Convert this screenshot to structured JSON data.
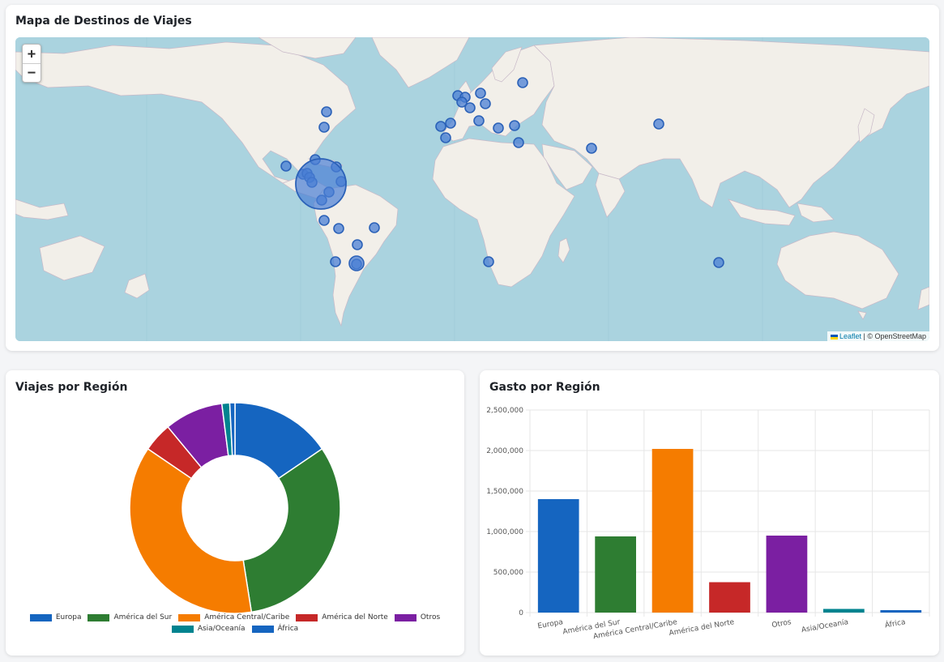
{
  "map_card": {
    "title": "Mapa de Destinos de Viajes",
    "zoom_in": "+",
    "zoom_out": "−",
    "attribution_link": "Leaflet",
    "attribution_text": " | © OpenStreetMap",
    "colors": {
      "ocean": "#aad3df",
      "land": "#f2efe9",
      "marker": "#4a7fd4"
    }
  },
  "pie_card": {
    "title": "Viajes por Región",
    "chart_data": {
      "type": "pie",
      "title": "Viajes por Región",
      "donut": true,
      "categories": [
        "Europa",
        "América del Sur",
        "América Central/Caribe",
        "América del Norte",
        "Otros",
        "Asia/Oceanía",
        "África"
      ],
      "values": [
        15.5,
        32,
        37,
        4.5,
        9,
        1.2,
        0.8
      ],
      "colors": [
        "#1565c0",
        "#2e7d32",
        "#f57c00",
        "#c62828",
        "#7b1fa2",
        "#00838f",
        "#1565c0"
      ],
      "legend_position": "bottom"
    }
  },
  "bar_card": {
    "title": "Gasto por Región",
    "chart_data": {
      "type": "bar",
      "title": "Gasto por Región",
      "categories": [
        "Europa",
        "América del Sur",
        "América Central/Caribe",
        "América del Norte",
        "Otros",
        "Asia/Oceanía",
        "África"
      ],
      "values": [
        1400000,
        940000,
        2020000,
        375000,
        950000,
        45000,
        30000
      ],
      "colors": [
        "#1565c0",
        "#2e7d32",
        "#f57c00",
        "#c62828",
        "#7b1fa2",
        "#00838f",
        "#1565c0"
      ],
      "ylim": [
        0,
        2500000
      ],
      "yticks": [
        "0",
        "500,000",
        "1,000,000",
        "1,500,000",
        "2,000,000",
        "2,500,000"
      ],
      "grid": true,
      "xlabel": "",
      "ylabel": ""
    }
  }
}
